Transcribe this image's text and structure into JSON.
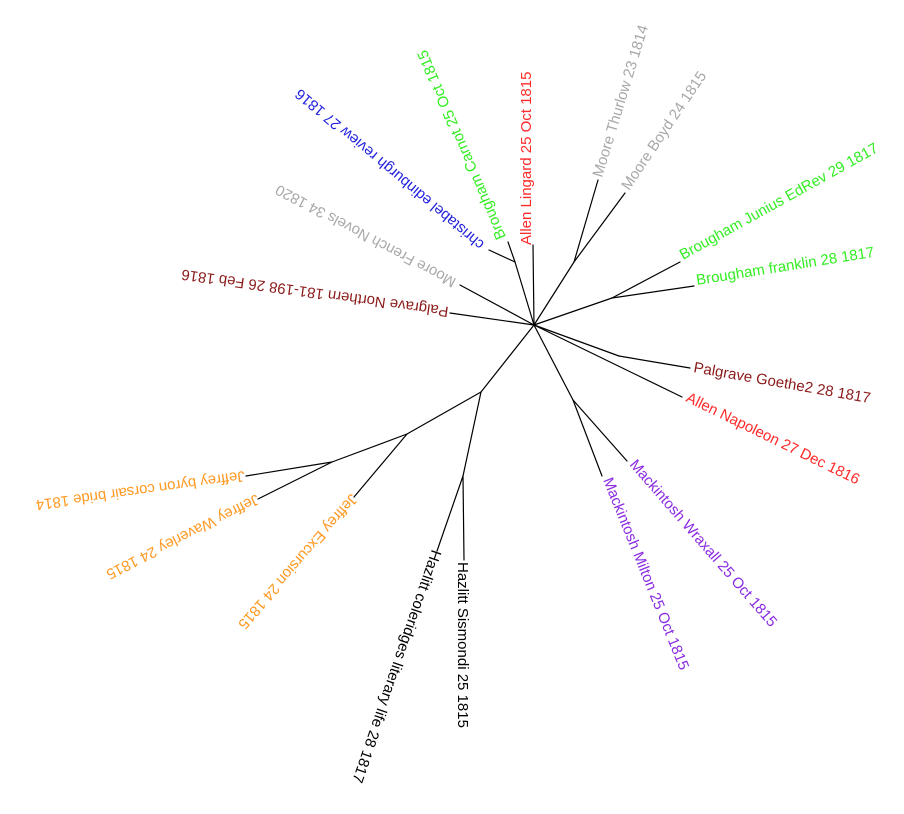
{
  "tips": [
    {
      "label": "Allen Lingard 25 Oct 1815",
      "color": "#ff2a2a"
    },
    {
      "label": "Moore Thurlow 23 1814",
      "color": "#a8a8a8"
    },
    {
      "label": "Moore Boyd 24 1815",
      "color": "#a8a8a8"
    },
    {
      "label": "Brougham Junius EdRev 29 1817",
      "color": "#33ee22"
    },
    {
      "label": "Brougham franklin 28 1817",
      "color": "#33ee22"
    },
    {
      "label": "Palgrave Goethe2 28 1817",
      "color": "#8b1a1a"
    },
    {
      "label": "Allen Napoleon 27 Dec 1816",
      "color": "#ff2a2a"
    },
    {
      "label": "Mackintosh Wraxall 25 Oct 1815",
      "color": "#8a2be2"
    },
    {
      "label": "Mackintosh Milton 25 Oct 1815",
      "color": "#8a2be2"
    },
    {
      "label": "Hazlitt Sismondi 25 1815",
      "color": "#000000"
    },
    {
      "label": "Hazlitt coleridges literary life 28 1817",
      "color": "#000000"
    },
    {
      "label": "Jeffrey Excursion 24 1815",
      "color": "#ff9922"
    },
    {
      "label": "Jeffrey Waverley 24 1815",
      "color": "#ff9922"
    },
    {
      "label": "Jeffrey byron corsair bride 1814",
      "color": "#ff9922"
    },
    {
      "label": "Palgrave Northern 181-198 26 Feb 1816",
      "color": "#8b1a1a"
    },
    {
      "label": "Moore French Novels 34 1820",
      "color": "#a8a8a8"
    },
    {
      "label": "christabel edinburgh review 27 1816",
      "color": "#2222dd"
    },
    {
      "label": "Brougham Carnot 25 Oct 1815",
      "color": "#33ee22"
    }
  ]
}
